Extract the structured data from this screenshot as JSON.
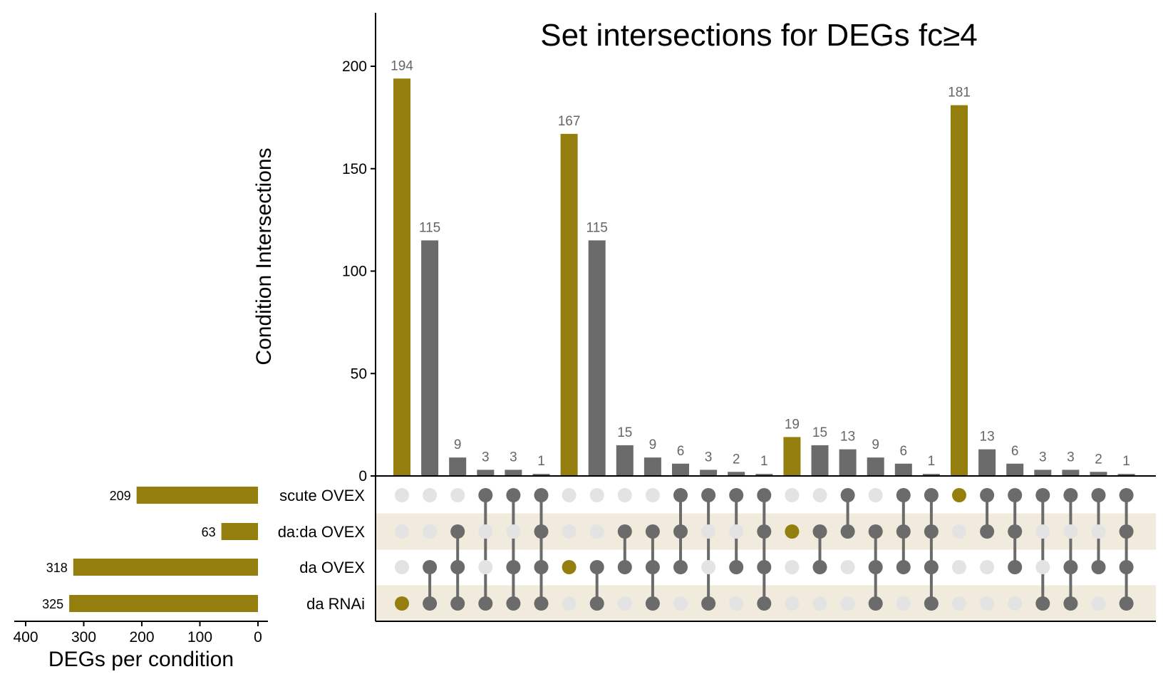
{
  "chart_data": {
    "type": "bar",
    "subtype": "upset",
    "title": "Set intersections for DEGs fc≥4",
    "ylabel": "Condition Intersections",
    "ylim": [
      0,
      220
    ],
    "yticks": [
      0,
      50,
      100,
      150,
      200
    ],
    "colors": {
      "highlight": "#947f0e",
      "default": "#6b6b6b",
      "empty_dot": "#e3e3e3",
      "stripe": "#f0ebdd"
    },
    "sets": [
      "scute OVEX",
      "da:da OVEX",
      "da OVEX",
      "da RNAi"
    ],
    "set_sizes": [
      209,
      63,
      318,
      325
    ],
    "set_size_axis": {
      "label": "DEGs per condition",
      "ticks": [
        400,
        300,
        200,
        100,
        0
      ],
      "max": 400
    },
    "intersections": [
      {
        "value": 194,
        "members": [
          0,
          0,
          0,
          1
        ],
        "highlight": true
      },
      {
        "value": 115,
        "members": [
          0,
          0,
          1,
          1
        ],
        "highlight": false
      },
      {
        "value": 9,
        "members": [
          0,
          1,
          1,
          1
        ],
        "highlight": false
      },
      {
        "value": 3,
        "members": [
          1,
          0,
          0,
          1
        ],
        "highlight": false
      },
      {
        "value": 3,
        "members": [
          1,
          0,
          1,
          1
        ],
        "highlight": false
      },
      {
        "value": 1,
        "members": [
          1,
          1,
          1,
          1
        ],
        "highlight": false
      },
      {
        "value": 167,
        "members": [
          0,
          0,
          1,
          0
        ],
        "highlight": true
      },
      {
        "value": 115,
        "members": [
          0,
          0,
          1,
          1
        ],
        "highlight": false
      },
      {
        "value": 15,
        "members": [
          0,
          1,
          1,
          0
        ],
        "highlight": false
      },
      {
        "value": 9,
        "members": [
          0,
          1,
          1,
          1
        ],
        "highlight": false
      },
      {
        "value": 6,
        "members": [
          1,
          1,
          1,
          0
        ],
        "highlight": false
      },
      {
        "value": 3,
        "members": [
          1,
          0,
          0,
          1
        ],
        "highlight": false
      },
      {
        "value": 2,
        "members": [
          1,
          0,
          1,
          0
        ],
        "highlight": false
      },
      {
        "value": 1,
        "members": [
          1,
          1,
          1,
          1
        ],
        "highlight": false
      },
      {
        "value": 19,
        "members": [
          0,
          1,
          0,
          0
        ],
        "highlight": true
      },
      {
        "value": 15,
        "members": [
          0,
          1,
          1,
          0
        ],
        "highlight": false
      },
      {
        "value": 13,
        "members": [
          1,
          1,
          0,
          0
        ],
        "highlight": false
      },
      {
        "value": 9,
        "members": [
          0,
          1,
          1,
          1
        ],
        "highlight": false
      },
      {
        "value": 6,
        "members": [
          1,
          1,
          1,
          0
        ],
        "highlight": false
      },
      {
        "value": 1,
        "members": [
          1,
          1,
          1,
          1
        ],
        "highlight": false
      },
      {
        "value": 181,
        "members": [
          1,
          0,
          0,
          0
        ],
        "highlight": true
      },
      {
        "value": 13,
        "members": [
          1,
          1,
          0,
          0
        ],
        "highlight": false
      },
      {
        "value": 6,
        "members": [
          1,
          1,
          1,
          0
        ],
        "highlight": false
      },
      {
        "value": 3,
        "members": [
          1,
          0,
          0,
          1
        ],
        "highlight": false
      },
      {
        "value": 3,
        "members": [
          1,
          0,
          1,
          1
        ],
        "highlight": false
      },
      {
        "value": 2,
        "members": [
          1,
          0,
          1,
          0
        ],
        "highlight": false
      },
      {
        "value": 1,
        "members": [
          1,
          1,
          1,
          1
        ],
        "highlight": false
      }
    ]
  }
}
